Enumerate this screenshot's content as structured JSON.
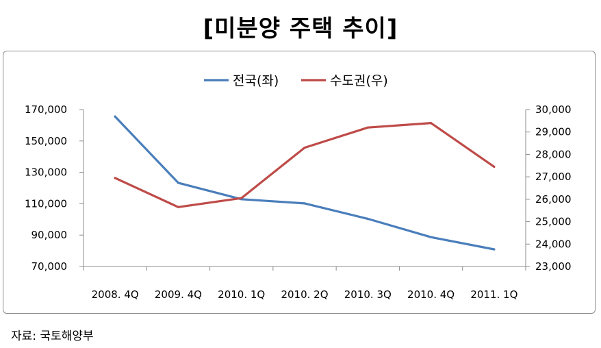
{
  "title": "[미분양 주택 추이]",
  "source": "자료: 국토해양부",
  "chart_data": {
    "type": "line",
    "categories": [
      "2008. 4Q",
      "2009. 4Q",
      "2010. 1Q",
      "2010. 2Q",
      "2010. 3Q",
      "2010. 4Q",
      "2011. 1Q"
    ],
    "series": [
      {
        "name": "전국(좌)",
        "axis": "left",
        "color": "#4a7ebb",
        "values": [
          165600,
          123300,
          112900,
          110200,
          100400,
          88700,
          80900
        ]
      },
      {
        "name": "수도권(우)",
        "axis": "right",
        "color": "#be4b48",
        "values": [
          26950,
          25650,
          26050,
          28300,
          29200,
          29400,
          27450
        ]
      }
    ],
    "y_left": {
      "ylim": [
        70000,
        170000
      ],
      "ticks": [
        "70,000",
        "90,000",
        "110,000",
        "130,000",
        "150,000",
        "170,000"
      ]
    },
    "y_right": {
      "ylim": [
        23000,
        30000
      ],
      "ticks": [
        "23,000",
        "24,000",
        "25,000",
        "26,000",
        "27,000",
        "28,000",
        "29,000",
        "30,000"
      ]
    },
    "legend_position": "top-center",
    "grid": false
  }
}
